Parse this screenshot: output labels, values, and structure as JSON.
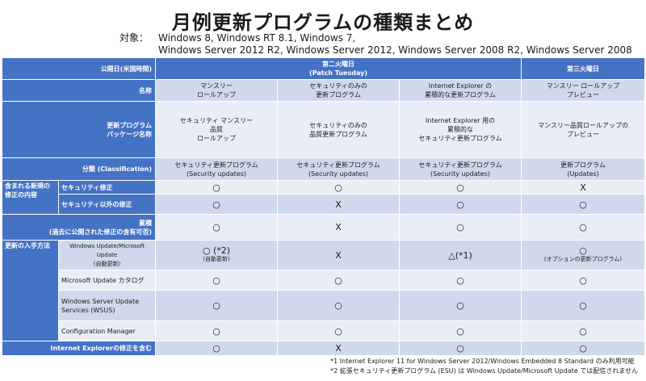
{
  "title": "月例更新プログラムの種類まとめ",
  "targets": {
    "label": "対象：",
    "line1": "Windows 8, Windows RT 8.1, Windows 7,",
    "line2": "Windows Server 2012 R2, Windows Server 2012, Windows Server 2008 R2, Windows Server 2008"
  },
  "header": {
    "publish_date": "公開日(米国時間)",
    "second_tuesday": "第二火曜日",
    "patch_tuesday": "(Patch Tuesday)",
    "third_tuesday": "第三火曜日"
  },
  "rows": {
    "name": {
      "label": "名称",
      "cells": [
        "マンスリー\nロールアップ",
        "セキュリティのみの\n更新プログラム",
        "Internet Explorer の\n累積的な更新プログラム",
        "マンスリー ロールアップ\nプレビュー"
      ]
    },
    "package": {
      "label": "更新プログラム\nパッケージ名称",
      "cells": [
        "セキュリティ マンスリー\n品質\nロールアップ",
        "セキュリティのみの\n品質更新プログラム",
        "Internet Explorer 用の\n累積的な\nセキュリティ更新プログラム",
        "マンスリー品質ロールアップの\nプレビュー"
      ]
    },
    "classification": {
      "label": "分類 (Classification)",
      "cells": [
        "セキュリティ更新プログラム\n(Security updates)",
        "セキュリティ更新プログラム\n(Security updates)",
        "セキュリティ更新プログラム\n(Security updates)",
        "更新プログラム\n(Updates)"
      ]
    },
    "included_group": "含まれる新規の\n修正の内容",
    "security_fix": {
      "label": "セキュリティ修正",
      "cells": [
        "○",
        "○",
        "○",
        "X"
      ]
    },
    "nonsecurity_fix": {
      "label": "セキュリティ以外の修正",
      "cells": [
        "○",
        "X",
        "○",
        "○"
      ]
    },
    "cumulative": {
      "label": "累積\n(過去に公開された修正の含有可否)",
      "cells": [
        "○",
        "X",
        "○",
        "○"
      ]
    },
    "method_group": "更新の入手方法",
    "windows_update": {
      "label": "Windows Update/Microsoft\nUpdate\n(自動更新)",
      "cells": [
        "○ (*2)",
        "X",
        "△(*1)",
        "○"
      ],
      "subs": [
        "(自動更新)",
        "",
        "",
        "(オプションの更新プログラム)"
      ]
    },
    "catalog": {
      "label": "Microsoft Update カタログ",
      "cells": [
        "○",
        "○",
        "○",
        "○"
      ]
    },
    "wsus": {
      "label": "Windows Server Update\nServices (WSUS)",
      "cells": [
        "○",
        "○",
        "○",
        "○"
      ]
    },
    "configmgr": {
      "label": "Configuration Manager",
      "cells": [
        "○",
        "○",
        "○",
        "○"
      ]
    },
    "ie_fix": {
      "label": "Internet Explorerの修正を含む",
      "cells": [
        "○",
        "X",
        "○",
        "○"
      ]
    }
  },
  "notes": {
    "n1": "*1 Internet Explorer 11 for Windows Server 2012/Windows Embedded 8 Standard のみ利用可能",
    "n2": "*2 拡張セキュリティ更新プログラム (ESU) は Windows Update/Microsoft Update では配信されません"
  },
  "colors": {
    "header": "#4472c4",
    "row_dark": "#d0d9ec",
    "row_light": "#e9edf6"
  }
}
